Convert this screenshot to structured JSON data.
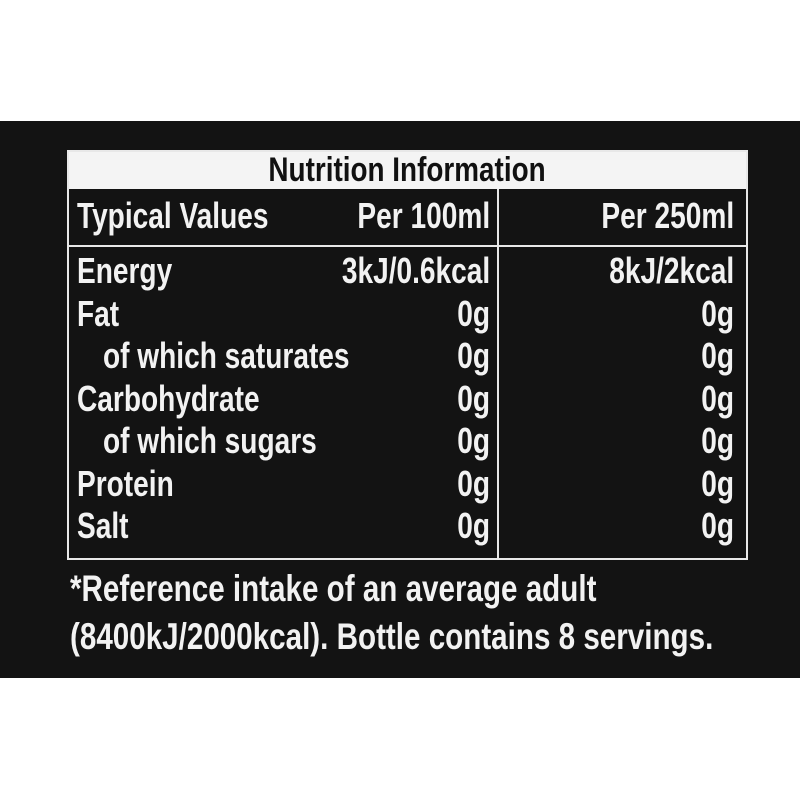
{
  "title": "Nutrition Information",
  "headers": {
    "label": "Typical Values",
    "per100": "Per 100ml",
    "per250": "Per 250ml"
  },
  "rows": [
    {
      "label": "Energy",
      "per100": "3kJ/0.6kcal",
      "per250": "8kJ/2kcal",
      "indent": false
    },
    {
      "label": "Fat",
      "per100": "0g",
      "per250": "0g",
      "indent": false
    },
    {
      "label": "of which saturates",
      "per100": "0g",
      "per250": "0g",
      "indent": true
    },
    {
      "label": "Carbohydrate",
      "per100": "0g",
      "per250": "0g",
      "indent": false
    },
    {
      "label": "of which sugars",
      "per100": "0g",
      "per250": "0g",
      "indent": true
    },
    {
      "label": "Protein",
      "per100": "0g",
      "per250": "0g",
      "indent": false
    },
    {
      "label": "Salt",
      "per100": "0g",
      "per250": "0g",
      "indent": false
    }
  ],
  "footnote": {
    "line1": "*Reference intake of an average adult",
    "line2": "(8400kJ/2000kcal). Bottle contains 8 servings."
  }
}
